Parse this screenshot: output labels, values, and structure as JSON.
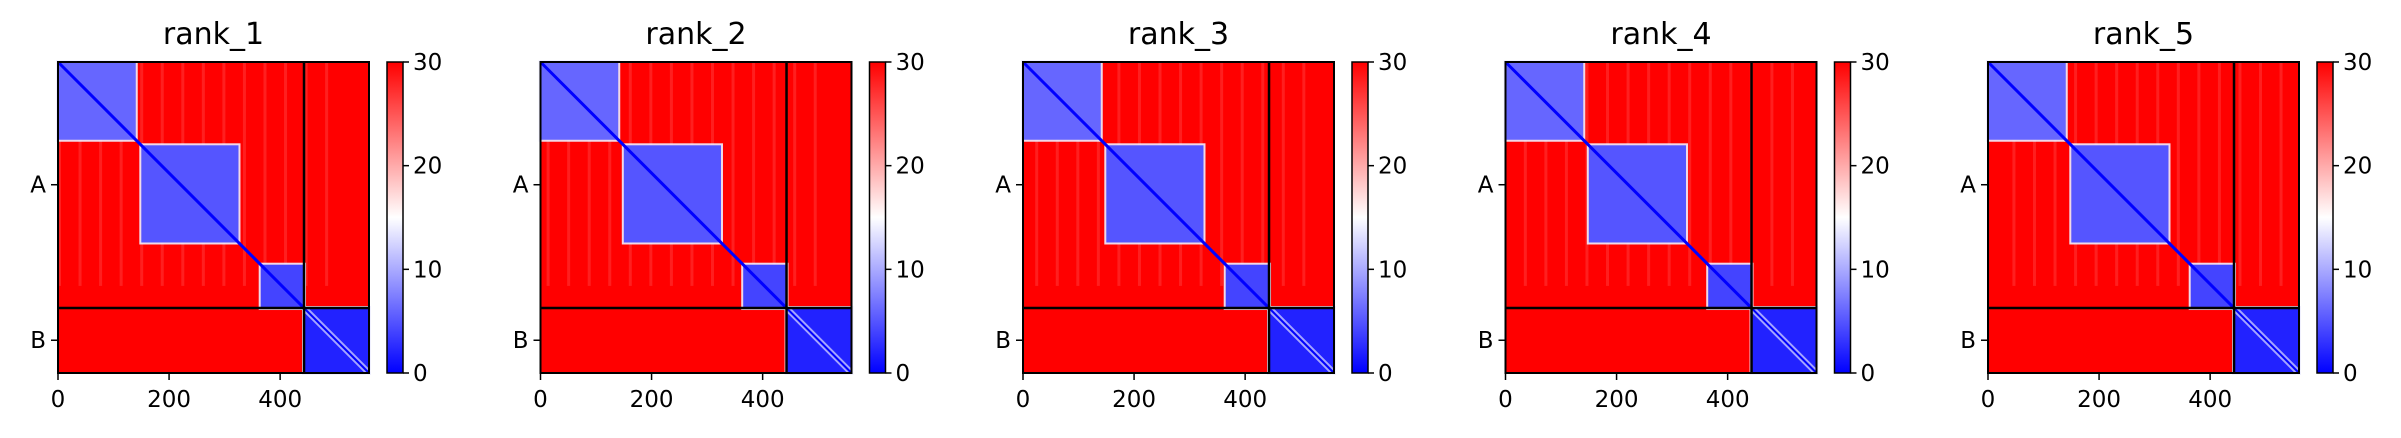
{
  "chart_data": {
    "type": "heatmap",
    "colorscale": {
      "low": "#0000ff",
      "mid": "#ffffff",
      "high": "#ff0000"
    },
    "colorbar": {
      "range": [
        0,
        30
      ],
      "ticks": [
        0,
        10,
        20,
        30
      ]
    },
    "axes": {
      "x_range": [
        0,
        560
      ],
      "y_range": [
        0,
        560
      ],
      "x_ticks": [
        0,
        200,
        400
      ],
      "chain_boundary": 443,
      "chain_labels": [
        {
          "label": "A",
          "center": 221
        },
        {
          "label": "B",
          "center": 501
        }
      ]
    },
    "low_error_blocks": [
      {
        "start": 0,
        "end": 140,
        "level": 6
      },
      {
        "start": 150,
        "end": 325,
        "level": 5
      },
      {
        "start": 365,
        "end": 443,
        "level": 4
      },
      {
        "start": 443,
        "end": 560,
        "level": 2
      }
    ],
    "panels": [
      {
        "title": "rank_1"
      },
      {
        "title": "rank_2"
      },
      {
        "title": "rank_3"
      },
      {
        "title": "rank_4"
      },
      {
        "title": "rank_5"
      }
    ]
  }
}
